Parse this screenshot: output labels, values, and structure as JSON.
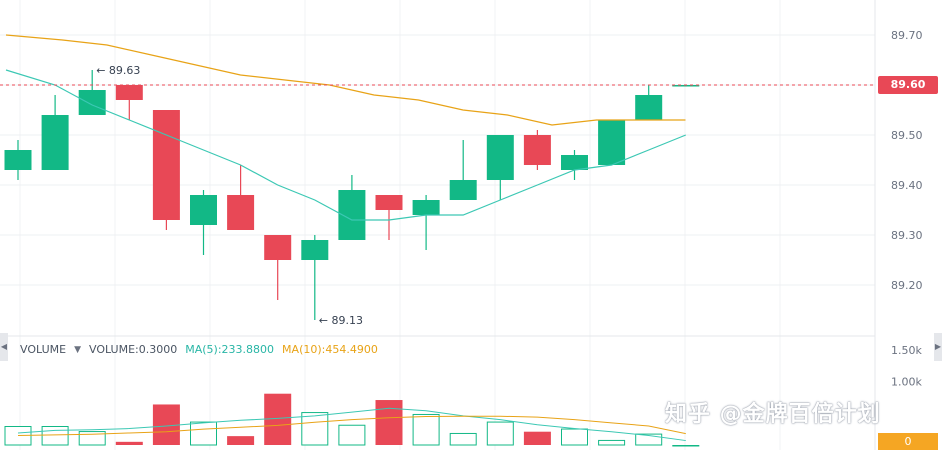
{
  "chart_data": {
    "type": "candlestick",
    "price_axis": {
      "ticks": [
        "89.70",
        "89.60",
        "89.50",
        "89.40",
        "89.30",
        "89.20"
      ],
      "range": [
        89.12,
        89.74
      ]
    },
    "current_price": "89.60",
    "annotations": {
      "high_label": "89.63",
      "low_label": "89.13"
    },
    "candles": [
      {
        "o": 89.43,
        "h": 89.49,
        "l": 89.41,
        "c": 89.47
      },
      {
        "o": 89.43,
        "h": 89.58,
        "l": 89.43,
        "c": 89.54
      },
      {
        "o": 89.54,
        "h": 89.63,
        "l": 89.54,
        "c": 89.59
      },
      {
        "o": 89.6,
        "h": 89.6,
        "l": 89.53,
        "c": 89.57
      },
      {
        "o": 89.55,
        "h": 89.55,
        "l": 89.31,
        "c": 89.33
      },
      {
        "o": 89.32,
        "h": 89.39,
        "l": 89.26,
        "c": 89.38
      },
      {
        "o": 89.38,
        "h": 89.44,
        "l": 89.31,
        "c": 89.31
      },
      {
        "o": 89.3,
        "h": 89.3,
        "l": 89.17,
        "c": 89.25
      },
      {
        "o": 89.25,
        "h": 89.3,
        "l": 89.13,
        "c": 89.29
      },
      {
        "o": 89.29,
        "h": 89.42,
        "l": 89.29,
        "c": 89.39
      },
      {
        "o": 89.38,
        "h": 89.38,
        "l": 89.29,
        "c": 89.35
      },
      {
        "o": 89.34,
        "h": 89.38,
        "l": 89.27,
        "c": 89.37
      },
      {
        "o": 89.37,
        "h": 89.49,
        "l": 89.37,
        "c": 89.41
      },
      {
        "o": 89.41,
        "h": 89.5,
        "l": 89.37,
        "c": 89.5
      },
      {
        "o": 89.5,
        "h": 89.51,
        "l": 89.43,
        "c": 89.44
      },
      {
        "o": 89.43,
        "h": 89.47,
        "l": 89.41,
        "c": 89.46
      },
      {
        "o": 89.44,
        "h": 89.53,
        "l": 89.44,
        "c": 89.53
      },
      {
        "o": 89.53,
        "h": 89.6,
        "l": 89.53,
        "c": 89.58
      },
      {
        "o": 89.6,
        "h": 89.6,
        "l": 89.6,
        "c": 89.6
      }
    ],
    "ma_fast": [
      89.63,
      89.6,
      89.56,
      89.53,
      89.5,
      89.47,
      89.44,
      89.4,
      89.37,
      89.33,
      89.33,
      89.34,
      89.34,
      89.37,
      89.4,
      89.43,
      89.44,
      89.47,
      89.5
    ],
    "ma_slow": [
      89.7,
      89.69,
      89.68,
      89.66,
      89.64,
      89.62,
      89.61,
      89.6,
      89.58,
      89.57,
      89.55,
      89.54,
      89.52,
      89.53,
      89.53,
      89.53
    ],
    "volume": {
      "legend": {
        "name": "VOLUME",
        "value": "VOLUME:0.3000",
        "ma5": "MA(5):233.8800",
        "ma10": "MA(10):454.4900"
      },
      "axis_ticks": [
        "1.50k",
        "1.00k"
      ],
      "last_value": "0",
      "bars": [
        300,
        300,
        220,
        50,
        640,
        370,
        140,
        810,
        520,
        320,
        710,
        490,
        190,
        370,
        210,
        260,
        80,
        180,
        0
      ],
      "ma5": [
        190,
        230,
        240,
        260,
        300,
        350,
        390,
        420,
        460,
        520,
        580,
        540,
        460,
        400,
        320,
        260,
        210,
        150,
        70
      ],
      "ma10": [
        150,
        160,
        170,
        190,
        210,
        250,
        280,
        310,
        360,
        400,
        430,
        450,
        454,
        454,
        440,
        400,
        350,
        300,
        180
      ]
    }
  },
  "watermark": "知乎 @金牌百倍计划"
}
